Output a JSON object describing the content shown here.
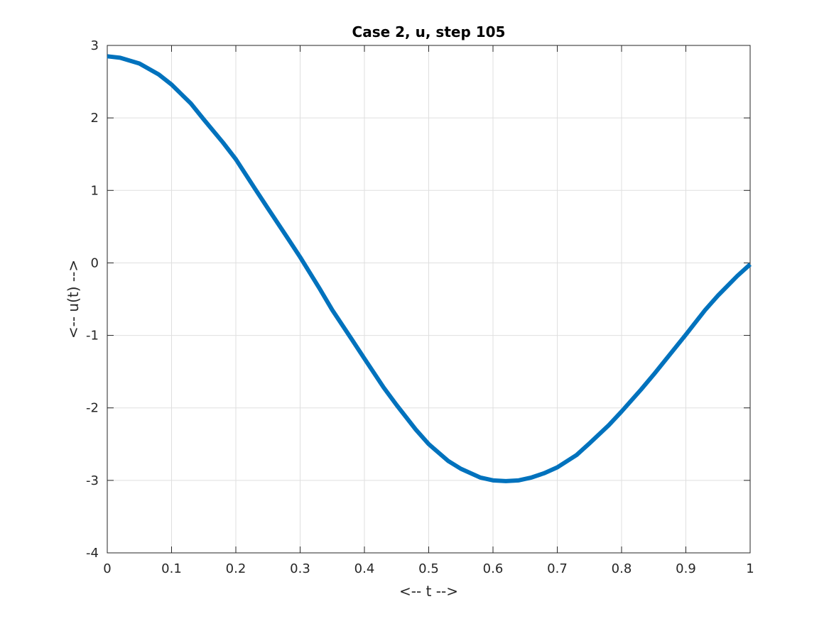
{
  "chart_data": {
    "type": "line",
    "title": "Case 2, u, step 105",
    "xlabel": "<-- t -->",
    "ylabel": "<-- u(t) -->",
    "xlim": [
      0,
      1
    ],
    "ylim": [
      -4,
      3
    ],
    "xticks": [
      0,
      0.1,
      0.2,
      0.3,
      0.4,
      0.5,
      0.6,
      0.7,
      0.8,
      0.9,
      1
    ],
    "xtick_labels": [
      "0",
      "0.1",
      "0.2",
      "0.3",
      "0.4",
      "0.5",
      "0.6",
      "0.7",
      "0.8",
      "0.9",
      "1"
    ],
    "yticks": [
      3,
      2,
      1,
      0,
      -1,
      -2,
      -3,
      -4
    ],
    "ytick_labels": [
      "3",
      "2",
      "1",
      "0",
      "-1",
      "-2",
      "-3",
      "-4"
    ],
    "grid": true,
    "series": [
      {
        "color": "#0072bd",
        "x": [
          0,
          0.02,
          0.05,
          0.08,
          0.1,
          0.13,
          0.15,
          0.18,
          0.2,
          0.23,
          0.25,
          0.28,
          0.3,
          0.33,
          0.35,
          0.38,
          0.4,
          0.43,
          0.45,
          0.48,
          0.5,
          0.53,
          0.55,
          0.58,
          0.6,
          0.62,
          0.64,
          0.66,
          0.68,
          0.7,
          0.73,
          0.75,
          0.78,
          0.8,
          0.83,
          0.85,
          0.88,
          0.9,
          0.93,
          0.95,
          0.98,
          1.0
        ],
        "y": [
          2.85,
          2.83,
          2.75,
          2.6,
          2.46,
          2.2,
          1.98,
          1.66,
          1.43,
          1.02,
          0.75,
          0.35,
          0.08,
          -0.35,
          -0.65,
          -1.05,
          -1.32,
          -1.72,
          -1.96,
          -2.3,
          -2.5,
          -2.73,
          -2.84,
          -2.96,
          -3.0,
          -3.01,
          -3.0,
          -2.96,
          -2.9,
          -2.82,
          -2.65,
          -2.49,
          -2.24,
          -2.05,
          -1.75,
          -1.54,
          -1.21,
          -0.99,
          -0.65,
          -0.45,
          -0.18,
          -0.02
        ]
      }
    ]
  }
}
